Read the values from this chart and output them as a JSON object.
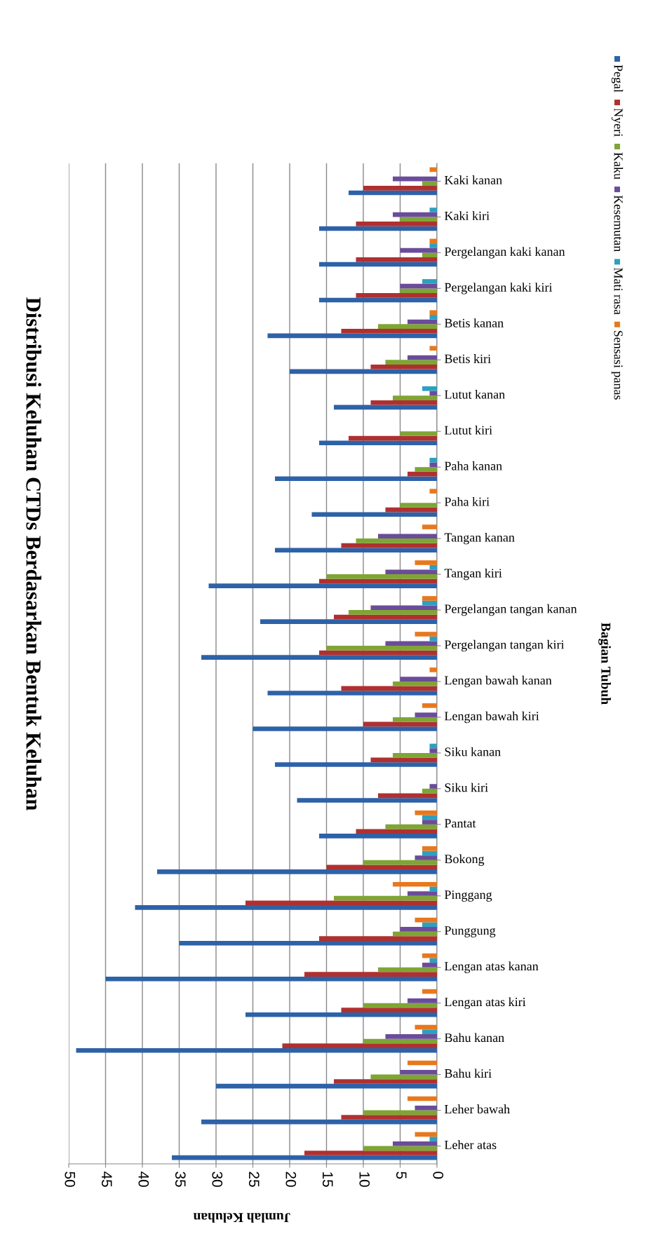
{
  "chart_data": {
    "type": "bar",
    "orientation": "horizontal",
    "title": "Distribusi Keluhan CTDs Berdasarkan Bentuk Keluhan",
    "xlabel": "Jumlah Keluhan",
    "ylabel": "Bagian Tubuh",
    "categories": [
      "Kaki kanan",
      "Kaki kiri",
      "Pergelangan kaki kanan",
      "Pergelangan kaki kiri",
      "Betis kanan",
      "Betis kiri",
      "Lutut kanan",
      "Lutut kiri",
      "Paha kanan",
      "Paha kiri",
      "Tangan kanan",
      "Tangan kiri",
      "Pergelangan tangan kanan",
      "Pergelangan tangan kiri",
      "Lengan bawah kanan",
      "Lengan bawah kiri",
      "Siku kanan",
      "Siku kiri",
      "Pantat",
      "Bokong",
      "Pinggang",
      "Punggung",
      "Lengan atas kanan",
      "Lengan atas kiri",
      "Bahu kanan",
      "Bahu kiri",
      "Leher bawah",
      "Leher atas"
    ],
    "series": [
      {
        "name": "Pegal",
        "color": "#2e62a8",
        "values": [
          12,
          16,
          16,
          16,
          23,
          20,
          14,
          16,
          22,
          17,
          22,
          31,
          24,
          32,
          23,
          25,
          22,
          19,
          16,
          38,
          41,
          35,
          45,
          26,
          49,
          30,
          32,
          36
        ]
      },
      {
        "name": "Nyeri",
        "color": "#b03030",
        "values": [
          10,
          11,
          11,
          11,
          13,
          9,
          9,
          12,
          4,
          7,
          13,
          16,
          14,
          16,
          13,
          10,
          9,
          8,
          11,
          15,
          26,
          16,
          18,
          13,
          21,
          14,
          13,
          18
        ]
      },
      {
        "name": "Kaku",
        "color": "#7fa535",
        "values": [
          2,
          5,
          2,
          5,
          8,
          7,
          6,
          5,
          3,
          5,
          11,
          15,
          12,
          15,
          6,
          6,
          6,
          2,
          7,
          10,
          14,
          6,
          8,
          10,
          10,
          9,
          10,
          10
        ]
      },
      {
        "name": "Kesemutan",
        "color": "#6b4c9a",
        "values": [
          6,
          6,
          5,
          5,
          4,
          4,
          1,
          0,
          1,
          0,
          8,
          7,
          9,
          7,
          5,
          3,
          1,
          1,
          2,
          3,
          4,
          5,
          2,
          4,
          7,
          5,
          3,
          6
        ]
      },
      {
        "name": "Mati rasa",
        "color": "#2f9fbf",
        "values": [
          0,
          1,
          1,
          2,
          1,
          0,
          2,
          0,
          1,
          0,
          0,
          1,
          2,
          1,
          0,
          0,
          1,
          0,
          2,
          2,
          1,
          2,
          1,
          0,
          2,
          0,
          0,
          1
        ]
      },
      {
        "name": "Sensasi panas",
        "color": "#e8781e",
        "values": [
          1,
          0,
          1,
          0,
          1,
          1,
          0,
          0,
          0,
          1,
          2,
          3,
          2,
          3,
          1,
          2,
          0,
          0,
          3,
          2,
          6,
          3,
          2,
          2,
          3,
          4,
          4,
          3
        ]
      }
    ],
    "xlim": [
      50,
      0
    ],
    "xticks": [
      0,
      5,
      10,
      15,
      20,
      25,
      30,
      35,
      40,
      45,
      50
    ],
    "grid": "x",
    "legend": "top right"
  }
}
